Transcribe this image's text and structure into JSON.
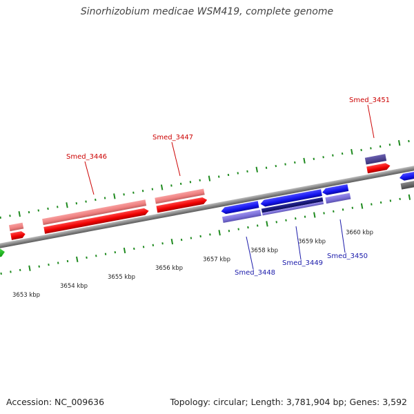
{
  "title": "Sinorhizobium medicae WSM419, complete genome",
  "footer": {
    "accession": "Accession: NC_009636",
    "summary": "Topology: circular; Length: 3,781,904 bp; Genes: 3,592"
  },
  "colors": {
    "backbone": "#8e8e8e",
    "tick": "#1e8a1e",
    "forward_cds": "#ff0000",
    "forward_gene": "#f08080",
    "reverse_cds": "#1414f0",
    "reverse_gene": "#7a6fd6",
    "reverse_dark": "#14147a",
    "reverse_dark_gene": "#4a4090",
    "other_gray": "#6a6a6a",
    "other_green": "#22bb22",
    "label_forward": "#cc0000",
    "label_reverse": "#1a1aaa"
  },
  "scale": {
    "ticks_kbp": [
      {
        "value": 3653,
        "label": "3653 kbp"
      },
      {
        "value": 3654,
        "label": "3654 kbp"
      },
      {
        "value": 3655,
        "label": "3655 kbp"
      },
      {
        "value": 3656,
        "label": "3656 kbp"
      },
      {
        "value": 3657,
        "label": "3657 kbp"
      },
      {
        "value": 3658,
        "label": "3658 kbp"
      },
      {
        "value": 3659,
        "label": "3659 kbp"
      },
      {
        "value": 3660,
        "label": "3660 kbp"
      }
    ]
  },
  "gene_labels": [
    {
      "name": "Smed_3446",
      "strand": "forward"
    },
    {
      "name": "Smed_3447",
      "strand": "forward"
    },
    {
      "name": "Smed_3451",
      "strand": "forward"
    },
    {
      "name": "Smed_3448",
      "strand": "reverse"
    },
    {
      "name": "Smed_3449",
      "strand": "reverse"
    },
    {
      "name": "Smed_3450",
      "strand": "reverse"
    }
  ]
}
